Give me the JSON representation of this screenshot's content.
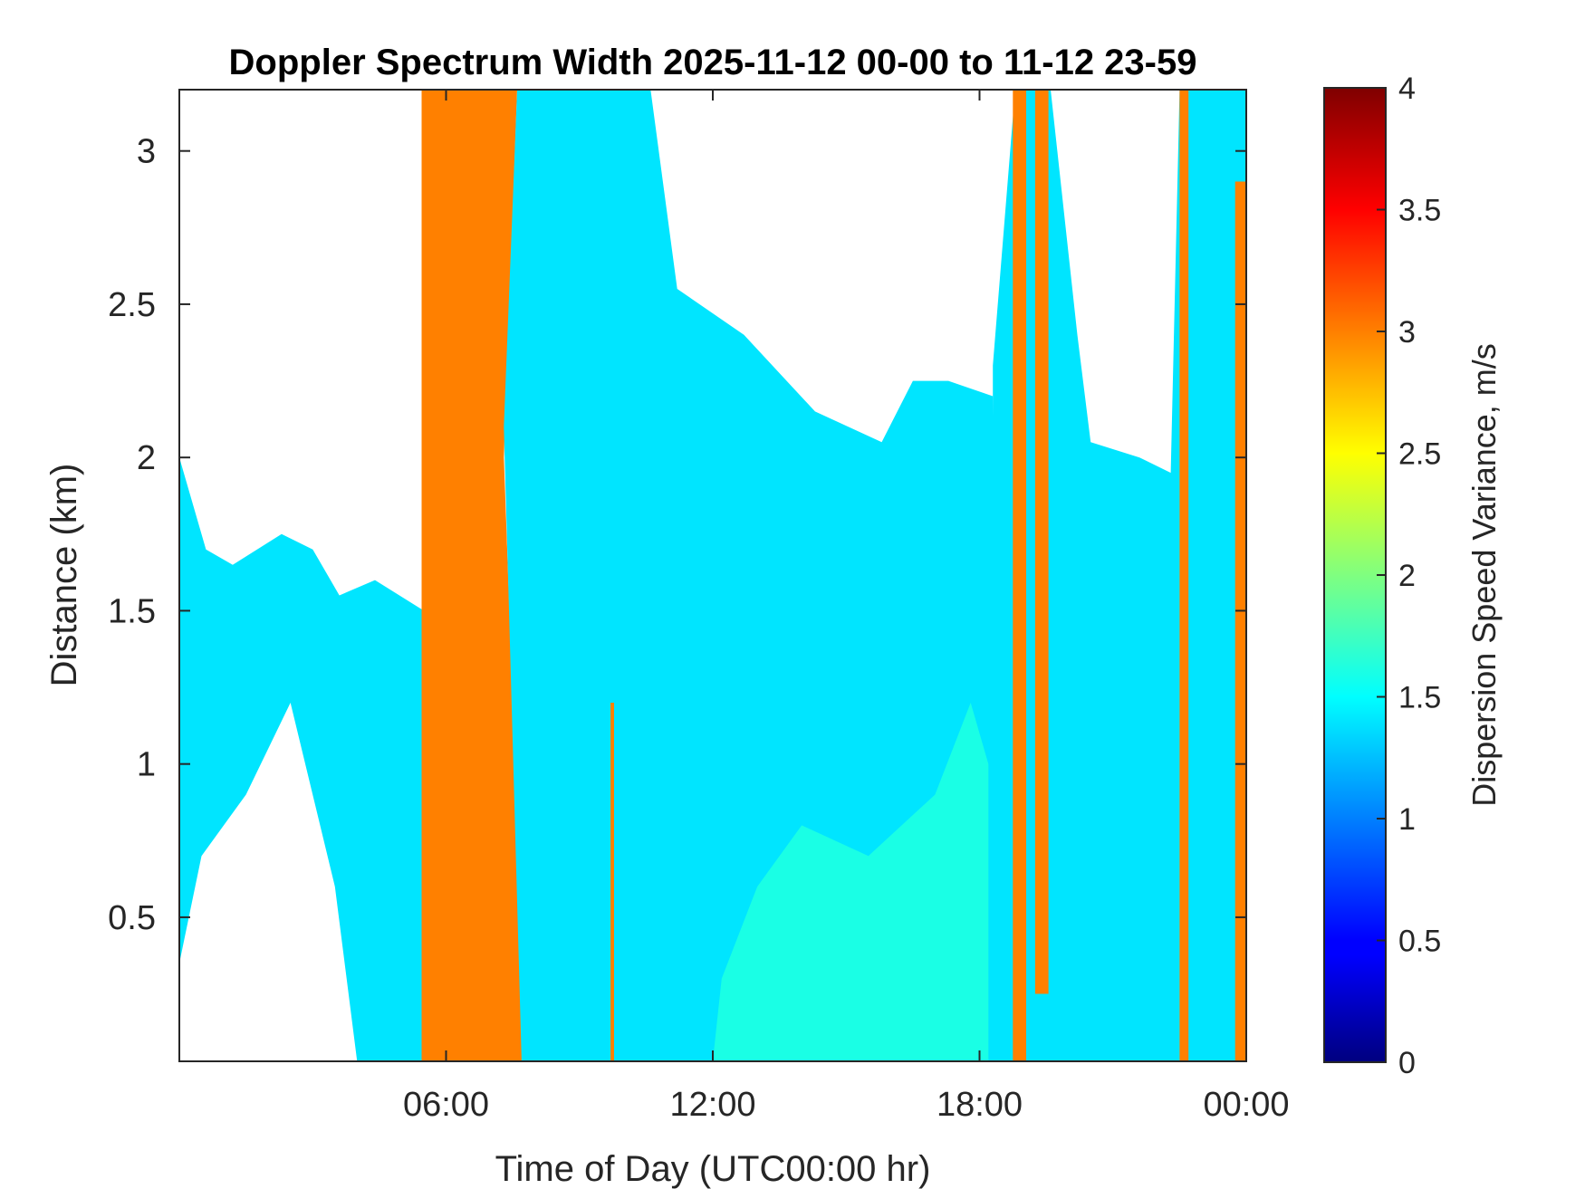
{
  "chart_data": {
    "type": "heatmap",
    "title": "Doppler Spectrum Width 2025-11-12 00-00 to 11-12 23-59",
    "xlabel": "Time of Day (UTC00:00 hr)",
    "ylabel": "Distance (km)",
    "xlim": [
      0,
      24
    ],
    "ylim": [
      0.03,
      3.2
    ],
    "x_ticks": [
      {
        "value": 6,
        "label": "06:00"
      },
      {
        "value": 12,
        "label": "12:00"
      },
      {
        "value": 18,
        "label": "18:00"
      },
      {
        "value": 24,
        "label": "00:00"
      }
    ],
    "y_ticks": [
      {
        "value": 0.5,
        "label": "0.5"
      },
      {
        "value": 1,
        "label": "1"
      },
      {
        "value": 1.5,
        "label": "1.5"
      },
      {
        "value": 2,
        "label": "2"
      },
      {
        "value": 2.5,
        "label": "2.5"
      },
      {
        "value": 3,
        "label": "3"
      }
    ],
    "grid": false,
    "colorbar": {
      "label": "Dispersion Speed Variance, m/s",
      "range": [
        0,
        4
      ],
      "colormap": "jet",
      "ticks": [
        {
          "value": 0,
          "label": "0"
        },
        {
          "value": 0.5,
          "label": "0.5"
        },
        {
          "value": 1,
          "label": "1"
        },
        {
          "value": 1.5,
          "label": "1.5"
        },
        {
          "value": 2,
          "label": "2"
        },
        {
          "value": 2.5,
          "label": "2.5"
        },
        {
          "value": 3,
          "label": "3"
        },
        {
          "value": 3.5,
          "label": "3.5"
        },
        {
          "value": 4,
          "label": "4"
        }
      ]
    },
    "regions": [
      {
        "value": 1.4,
        "polygon": [
          [
            0,
            0.35
          ],
          [
            0,
            2.0
          ],
          [
            0.6,
            1.7
          ],
          [
            1.2,
            1.65
          ],
          [
            2.3,
            1.75
          ],
          [
            3.0,
            1.7
          ],
          [
            3.6,
            1.55
          ],
          [
            4.4,
            1.6
          ],
          [
            5.5,
            1.5
          ],
          [
            5.5,
            0.03
          ],
          [
            4.0,
            0.03
          ],
          [
            3.5,
            0.6
          ],
          [
            2.5,
            1.2
          ],
          [
            1.5,
            0.9
          ],
          [
            0.5,
            0.7
          ]
        ]
      },
      {
        "value": 3.0,
        "polygon": [
          [
            5.45,
            0.03
          ],
          [
            5.45,
            3.2
          ],
          [
            7.6,
            3.2
          ],
          [
            7.3,
            2.0
          ],
          [
            7.5,
            1.2
          ],
          [
            7.9,
            0.9
          ],
          [
            7.8,
            0.03
          ]
        ]
      },
      {
        "value": 1.4,
        "polygon": [
          [
            7.7,
            0.03
          ],
          [
            7.3,
            2.1
          ],
          [
            7.6,
            3.2
          ],
          [
            10.6,
            3.2
          ],
          [
            11.2,
            2.55
          ],
          [
            12.7,
            2.4
          ],
          [
            14.3,
            2.15
          ],
          [
            15.8,
            2.05
          ],
          [
            16.5,
            2.25
          ],
          [
            17.3,
            2.25
          ],
          [
            18.3,
            2.2
          ],
          [
            18.5,
            0.03
          ]
        ]
      },
      {
        "value": 1.4,
        "polygon": [
          [
            18.3,
            0.03
          ],
          [
            18.3,
            2.3
          ],
          [
            18.8,
            3.2
          ],
          [
            19.6,
            3.2
          ],
          [
            20.2,
            2.4
          ],
          [
            20.5,
            2.05
          ],
          [
            21.6,
            2.0
          ],
          [
            22.3,
            1.95
          ],
          [
            22.5,
            3.2
          ],
          [
            24,
            3.2
          ],
          [
            24,
            0.03
          ]
        ]
      },
      {
        "value": 1.6,
        "polygon": [
          [
            12.0,
            0.03
          ],
          [
            12.2,
            0.3
          ],
          [
            13.0,
            0.6
          ],
          [
            14.0,
            0.8
          ],
          [
            15.5,
            0.7
          ],
          [
            17.0,
            0.9
          ],
          [
            17.8,
            1.2
          ],
          [
            18.2,
            1.0
          ],
          [
            18.2,
            0.03
          ]
        ]
      },
      {
        "value": 3.0,
        "polygon": [
          [
            18.75,
            0.03
          ],
          [
            18.75,
            3.2
          ],
          [
            19.05,
            3.2
          ],
          [
            19.05,
            0.03
          ]
        ]
      },
      {
        "value": 3.0,
        "polygon": [
          [
            19.25,
            0.25
          ],
          [
            19.25,
            3.2
          ],
          [
            19.55,
            3.2
          ],
          [
            19.55,
            0.25
          ]
        ]
      },
      {
        "value": 3.0,
        "polygon": [
          [
            22.5,
            0.03
          ],
          [
            22.5,
            3.2
          ],
          [
            22.7,
            3.2
          ],
          [
            22.7,
            0.03
          ]
        ]
      },
      {
        "value": 3.0,
        "polygon": [
          [
            23.75,
            0.03
          ],
          [
            23.75,
            2.9
          ],
          [
            24,
            2.9
          ],
          [
            24,
            0.03
          ]
        ]
      },
      {
        "value": 3.0,
        "polygon": [
          [
            9.7,
            0.03
          ],
          [
            9.7,
            1.2
          ],
          [
            9.78,
            1.2
          ],
          [
            9.78,
            0.03
          ]
        ]
      }
    ]
  }
}
